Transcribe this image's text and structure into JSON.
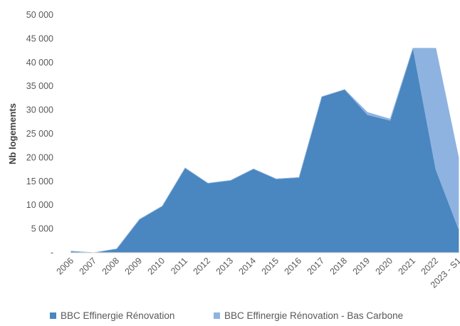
{
  "chart_data": {
    "type": "area",
    "stacked": true,
    "categories": [
      "2006",
      "2007",
      "2008",
      "2009",
      "2010",
      "2011",
      "2012",
      "2013",
      "2014",
      "2015",
      "2016",
      "2017",
      "2018",
      "2019",
      "2020",
      "2021",
      "2022",
      "2023 - S1"
    ],
    "series": [
      {
        "name": "BBC Effinergie Rénovation",
        "color": "#4a86bf",
        "values": [
          300,
          0,
          800,
          7000,
          9800,
          17800,
          14600,
          15200,
          17600,
          15500,
          15800,
          32800,
          34300,
          29000,
          27800,
          43000,
          17500,
          5000
        ]
      },
      {
        "name": "BBC Effinergie Rénovation - Bas Carbone",
        "color": "#8fb3e0",
        "values": [
          0,
          0,
          0,
          0,
          0,
          0,
          0,
          0,
          0,
          0,
          0,
          0,
          0,
          500,
          300,
          0,
          25500,
          15000
        ]
      }
    ],
    "ylabel": "Nb logements",
    "xlabel": "",
    "ylim": [
      0,
      50000
    ],
    "yticks": [
      0,
      5000,
      10000,
      15000,
      20000,
      25000,
      30000,
      35000,
      40000,
      45000,
      50000
    ],
    "ytick_labels": [
      "-",
      "5 000",
      "10 000",
      "15 000",
      "20 000",
      "25 000",
      "30 000",
      "35 000",
      "40 000",
      "45 000",
      "50 000"
    ],
    "grid": false,
    "legend_position": "bottom"
  }
}
